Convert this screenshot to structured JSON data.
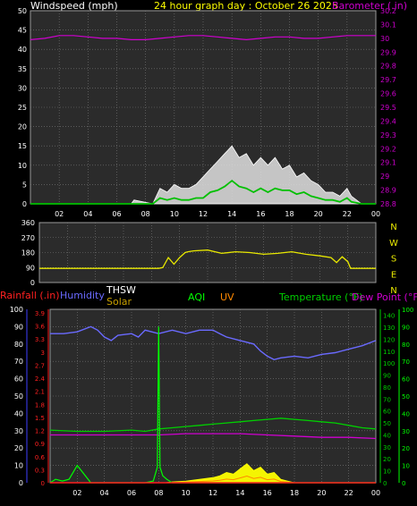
{
  "header": {
    "left_label": "Windspeed (mph)",
    "title": "24 hour graph day : October 26 2025",
    "right_label": "Barometer (.in)"
  },
  "colors": {
    "background": "#000000",
    "plot_bg": "#2b2b2b",
    "grid": "#7a7a7a",
    "wind_gust": "#ffffff",
    "wind_avg": "#00c000",
    "barometer": "#d000d0",
    "direction": "#e8e800",
    "humidity": "#6a6aff",
    "temperature": "#00d000",
    "dewpoint": "#d000d0",
    "solar": "#ffff00",
    "uv": "#ff8800",
    "rain": "#ff2020",
    "aqi": "#00ff00",
    "white": "#ffffff",
    "left_axis_blue": "#4040ff",
    "solar_label": "#c8a000"
  },
  "time_ticks": [
    "02",
    "04",
    "06",
    "08",
    "10",
    "12",
    "14",
    "16",
    "18",
    "20",
    "22",
    "00"
  ],
  "chart_data": [
    {
      "type": "area",
      "name": "wind-panel",
      "ylabel": "Windspeed (mph)",
      "y2label": "Barometer (.in)",
      "ylim": [
        0,
        50
      ],
      "yticks": [
        0,
        5,
        10,
        15,
        20,
        25,
        30,
        35,
        40,
        45,
        50
      ],
      "y2lim": [
        28.8,
        30.2
      ],
      "y2ticks": [
        "28.8",
        "28.9",
        "29",
        "29.1",
        "29.2",
        "29.3",
        "29.4",
        "29.5",
        "29.6",
        "29.7",
        "29.8",
        "29.9",
        "30",
        "30.1",
        "30.2"
      ],
      "xlim": [
        0,
        24
      ],
      "grid": true,
      "series": [
        {
          "key": "gust",
          "x": [
            0,
            7,
            7.2,
            8.5,
            9,
            9.5,
            10,
            10.5,
            11,
            11.5,
            12,
            12.5,
            13,
            13.5,
            14,
            14.5,
            15,
            15.5,
            16,
            16.5,
            17,
            17.5,
            18,
            18.5,
            19,
            19.5,
            20,
            20.5,
            21,
            21.5,
            22,
            22.3,
            23,
            24
          ],
          "values": [
            0,
            0,
            1,
            0,
            4,
            3,
            5,
            4,
            4,
            5,
            7,
            9,
            11,
            13,
            15,
            12,
            13,
            10,
            12,
            10,
            12,
            9,
            10,
            7,
            8,
            6,
            5,
            3,
            3,
            2,
            4,
            2,
            0,
            0
          ]
        },
        {
          "key": "avg",
          "x": [
            0,
            8.5,
            9,
            9.5,
            10,
            10.5,
            11,
            11.5,
            12,
            12.5,
            13,
            13.5,
            14,
            14.5,
            15,
            15.5,
            16,
            16.5,
            17,
            17.5,
            18,
            18.5,
            19,
            19.5,
            20,
            20.5,
            21,
            21.5,
            22,
            22.3,
            23,
            24
          ],
          "values": [
            0,
            0,
            1.5,
            1,
            1.5,
            1,
            1,
            1.5,
            1.5,
            3,
            3.5,
            4.5,
            6,
            4.5,
            4,
            3,
            4,
            3,
            4,
            3.5,
            3.5,
            2.5,
            3,
            2,
            1.5,
            1,
            1,
            0.5,
            1.5,
            0.5,
            0,
            0
          ]
        },
        {
          "key": "barometer",
          "x": [
            0,
            1,
            2,
            3,
            4,
            5,
            6,
            7,
            8,
            9,
            10,
            11,
            12,
            13,
            14,
            15,
            16,
            17,
            18,
            19,
            20,
            21,
            22,
            23,
            24
          ],
          "values": [
            29.99,
            30.0,
            30.02,
            30.02,
            30.01,
            30.0,
            30.0,
            29.99,
            29.99,
            30.0,
            30.01,
            30.02,
            30.02,
            30.01,
            30.0,
            29.99,
            30.0,
            30.01,
            30.01,
            30.0,
            30.0,
            30.01,
            30.02,
            30.02,
            30.02
          ]
        }
      ]
    },
    {
      "type": "line",
      "name": "direction-panel",
      "ylim": [
        0,
        360
      ],
      "yticks": [
        0,
        90,
        180,
        270,
        360
      ],
      "compass": [
        "N",
        "W",
        "S",
        "E",
        "N"
      ],
      "xlim": [
        0,
        24
      ],
      "grid": true,
      "series": [
        {
          "key": "direction",
          "x": [
            0,
            8.5,
            8.8,
            9.2,
            9.6,
            10,
            10.4,
            10.6,
            11,
            12,
            13,
            14,
            15,
            16,
            17,
            18,
            19,
            20,
            20.8,
            21.2,
            21.6,
            22,
            22.2,
            24
          ],
          "values": [
            85,
            85,
            90,
            150,
            110,
            150,
            180,
            185,
            190,
            195,
            175,
            185,
            180,
            170,
            175,
            185,
            170,
            160,
            150,
            120,
            155,
            125,
            85,
            85
          ]
        }
      ]
    },
    {
      "type": "line",
      "name": "multi-panel",
      "legend": [
        "Rainfall (.in)",
        "Humidity",
        "THSW",
        "Solar",
        "AQI",
        "UV",
        "Temperature (°F)",
        "Dew Point (°F)"
      ],
      "humidity_ticks": [
        0,
        10,
        20,
        30,
        40,
        50,
        60,
        70,
        80,
        90,
        100
      ],
      "rain_ticks": [
        "0",
        "0.3",
        "0.6",
        "0.9",
        "1.2",
        "1.5",
        "1.8",
        "2.1",
        "2.4",
        "2.7",
        "3",
        "3.3",
        "3.6",
        "3.9"
      ],
      "temp_ticks": [
        0,
        10,
        20,
        30,
        40,
        50,
        60,
        70,
        80,
        90,
        100,
        110,
        120,
        130,
        140
      ],
      "aqi_ticks": [
        0,
        10,
        20,
        30,
        40,
        50,
        60,
        70,
        80,
        90,
        100
      ],
      "xlim": [
        0,
        24
      ],
      "grid": true,
      "series": [
        {
          "key": "humidity",
          "x": [
            0,
            1,
            2,
            3,
            3.5,
            4,
            4.5,
            5,
            6,
            6.5,
            7,
            8,
            9,
            10,
            11,
            12,
            12.5,
            13,
            14,
            15,
            15.5,
            16,
            16.5,
            17,
            18,
            19,
            20,
            21,
            22,
            23,
            24
          ],
          "values": [
            86,
            86,
            87,
            90,
            88,
            84,
            82,
            85,
            86,
            84,
            88,
            86,
            88,
            86,
            88,
            88,
            86,
            84,
            82,
            80,
            76,
            73,
            71,
            72,
            73,
            72,
            74,
            75,
            77,
            79,
            82
          ]
        },
        {
          "key": "temperature",
          "x": [
            0,
            2,
            4,
            6,
            7,
            8,
            9,
            10,
            11,
            12,
            13,
            14,
            15,
            16,
            17,
            18,
            19,
            20,
            21,
            22,
            23,
            24
          ],
          "values": [
            44,
            43,
            43,
            44,
            43,
            45,
            46,
            47,
            48,
            49,
            50,
            51,
            52,
            53,
            54,
            53,
            52,
            51,
            50,
            48,
            46,
            45
          ]
        },
        {
          "key": "dewpoint",
          "x": [
            0,
            2,
            4,
            6,
            8,
            10,
            12,
            14,
            16,
            18,
            20,
            22,
            24
          ],
          "values": [
            40,
            40,
            40,
            40,
            40,
            41,
            41,
            41,
            40,
            39,
            38,
            38,
            37
          ]
        },
        {
          "key": "solar",
          "x": [
            0,
            8.5,
            9,
            10,
            11,
            12,
            12.5,
            13,
            13.5,
            14,
            14.5,
            15,
            15.5,
            16,
            16.5,
            17,
            17.5,
            18,
            24
          ],
          "values": [
            0,
            0,
            0.5,
            1,
            2,
            3,
            4,
            6,
            5,
            8,
            11,
            7,
            9,
            5,
            6,
            2,
            1,
            0,
            0
          ]
        },
        {
          "key": "aqi",
          "x": [
            0,
            0.4,
            0.9,
            1.4,
            2,
            3,
            4,
            5,
            6,
            7,
            7.6,
            7.9,
            8.0,
            8.1,
            8.3,
            8.6,
            9,
            10,
            14,
            18,
            22,
            24
          ],
          "values": [
            0,
            2,
            1,
            2,
            10,
            0,
            0,
            0,
            0,
            0,
            1,
            9,
            90,
            9,
            4,
            2,
            0,
            0,
            0,
            0,
            0,
            0
          ]
        },
        {
          "key": "rain",
          "x": [
            0,
            24
          ],
          "values": [
            0,
            0
          ]
        }
      ]
    }
  ]
}
